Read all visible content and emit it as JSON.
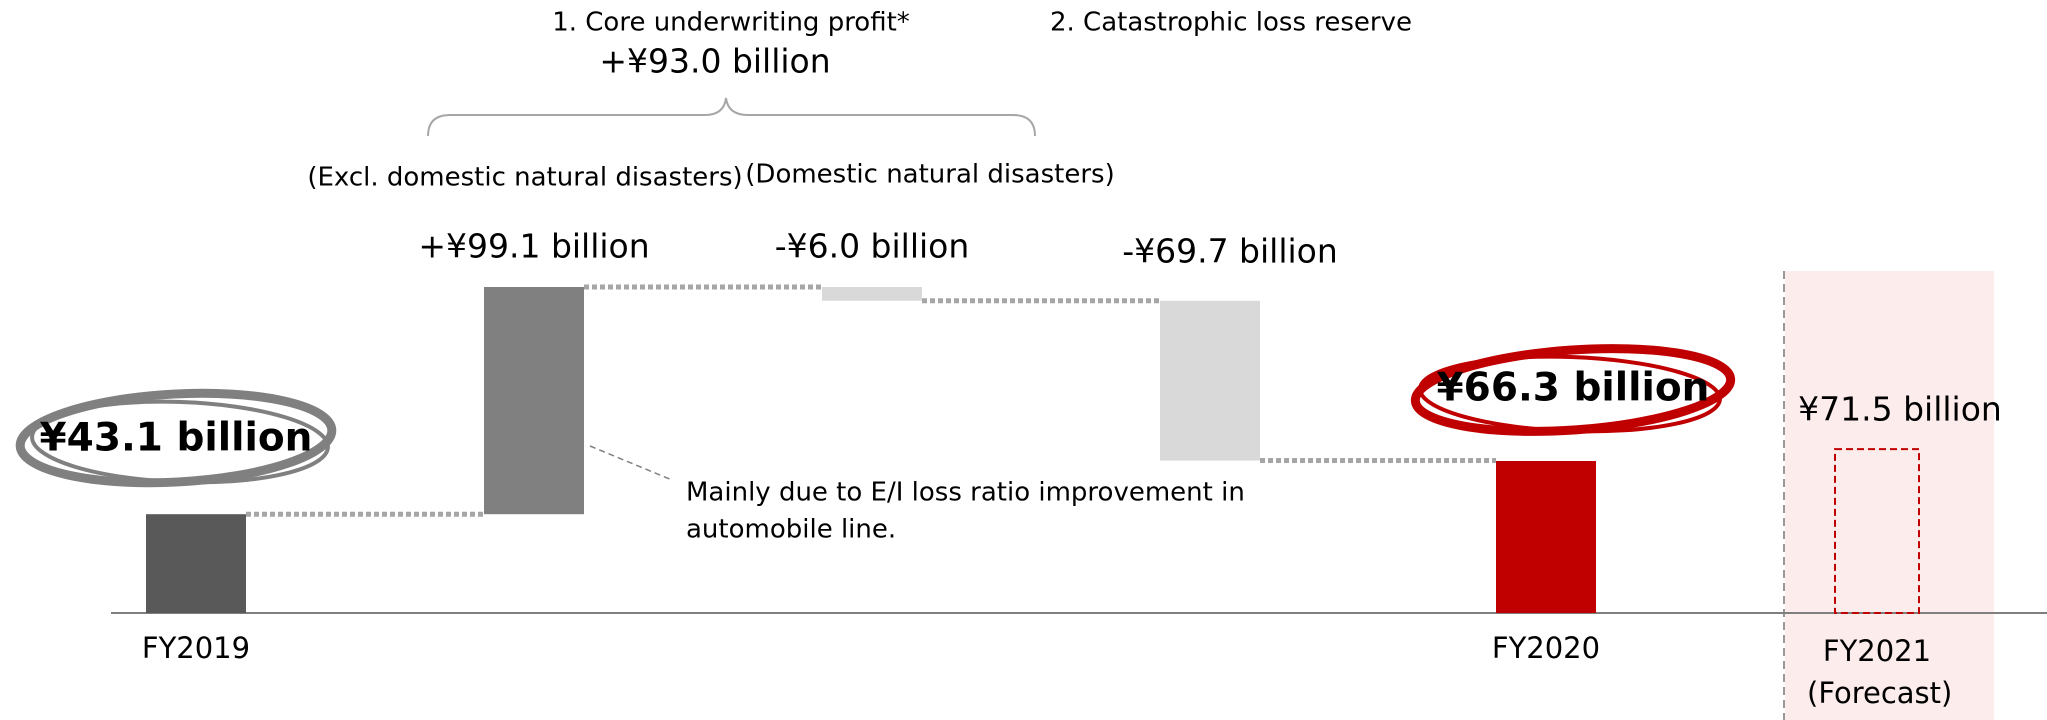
{
  "chart_data": {
    "type": "waterfall",
    "categories": [
      "FY2019",
      null,
      null,
      null,
      "FY2020",
      "FY2021 (Forecast)"
    ],
    "values": [
      43.1,
      99.1,
      -6.0,
      -69.7,
      66.3,
      71.5
    ],
    "value_labels": [
      "¥43.1 billion",
      "+¥99.1 billion",
      "-¥6.0 billion",
      "-¥69.7 billion",
      "¥66.3 billion",
      "¥71.5 billion"
    ],
    "measures": [
      "absolute",
      "relative",
      "relative",
      "relative",
      "absolute",
      "absolute"
    ],
    "styles": [
      "solid",
      "solid",
      "solid",
      "solid",
      "solid",
      "dashed"
    ],
    "colors": [
      "#595959",
      "#808080",
      "#d9d9d9",
      "#d9d9d9",
      "#c00000",
      "#c00000"
    ],
    "annotations": {
      "group_title": "1. Core underwriting profit*",
      "group_total": "+¥93.0 billion",
      "group_left": "(Excl. domestic natural disasters)",
      "group_right": "(Domestic natural disasters)",
      "reserve_title": "2. Catastrophic loss reserve",
      "note": [
        "Mainly due to E/I loss ratio improvement in",
        "automobile line."
      ]
    }
  }
}
